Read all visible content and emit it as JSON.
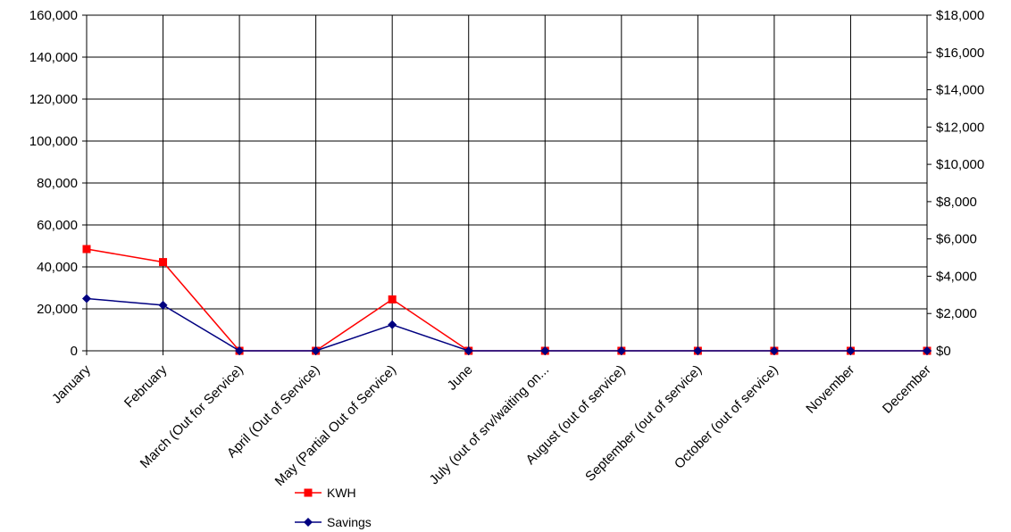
{
  "chart_data": {
    "type": "line",
    "title": "",
    "xlabel": "",
    "ylabel": "",
    "y2label": "",
    "categories": [
      "January",
      "February",
      "March   (Out for Service)",
      "April     (Out of Service)",
      "May   (Partial Out of Service)",
      "June",
      "July (out of srv/waiting on...",
      "August (out of service)",
      "September (out of service)",
      "October  (out of service)",
      "November",
      "December"
    ],
    "series": [
      {
        "name": "KWH",
        "axis": "left",
        "color": "#ff0000",
        "marker": "square",
        "values": [
          48500,
          42300,
          0,
          0,
          24500,
          0,
          0,
          0,
          0,
          0,
          0,
          0
        ]
      },
      {
        "name": "Savings",
        "axis": "right",
        "color": "#000080",
        "marker": "diamond",
        "values": [
          2800,
          2450,
          0,
          0,
          1400,
          0,
          0,
          0,
          0,
          0,
          0,
          0
        ]
      }
    ],
    "ylim": [
      0,
      160000
    ],
    "y2lim": [
      0,
      18000
    ],
    "y_ticks": [
      "0",
      "20,000",
      "40,000",
      "60,000",
      "80,000",
      "100,000",
      "120,000",
      "140,000",
      "160,000"
    ],
    "y2_ticks": [
      "$0",
      "$2,000",
      "$4,000",
      "$6,000",
      "$8,000",
      "$10,000",
      "$12,000",
      "$14,000",
      "$16,000",
      "$18,000"
    ],
    "grid": true,
    "legend_position": "bottom"
  }
}
